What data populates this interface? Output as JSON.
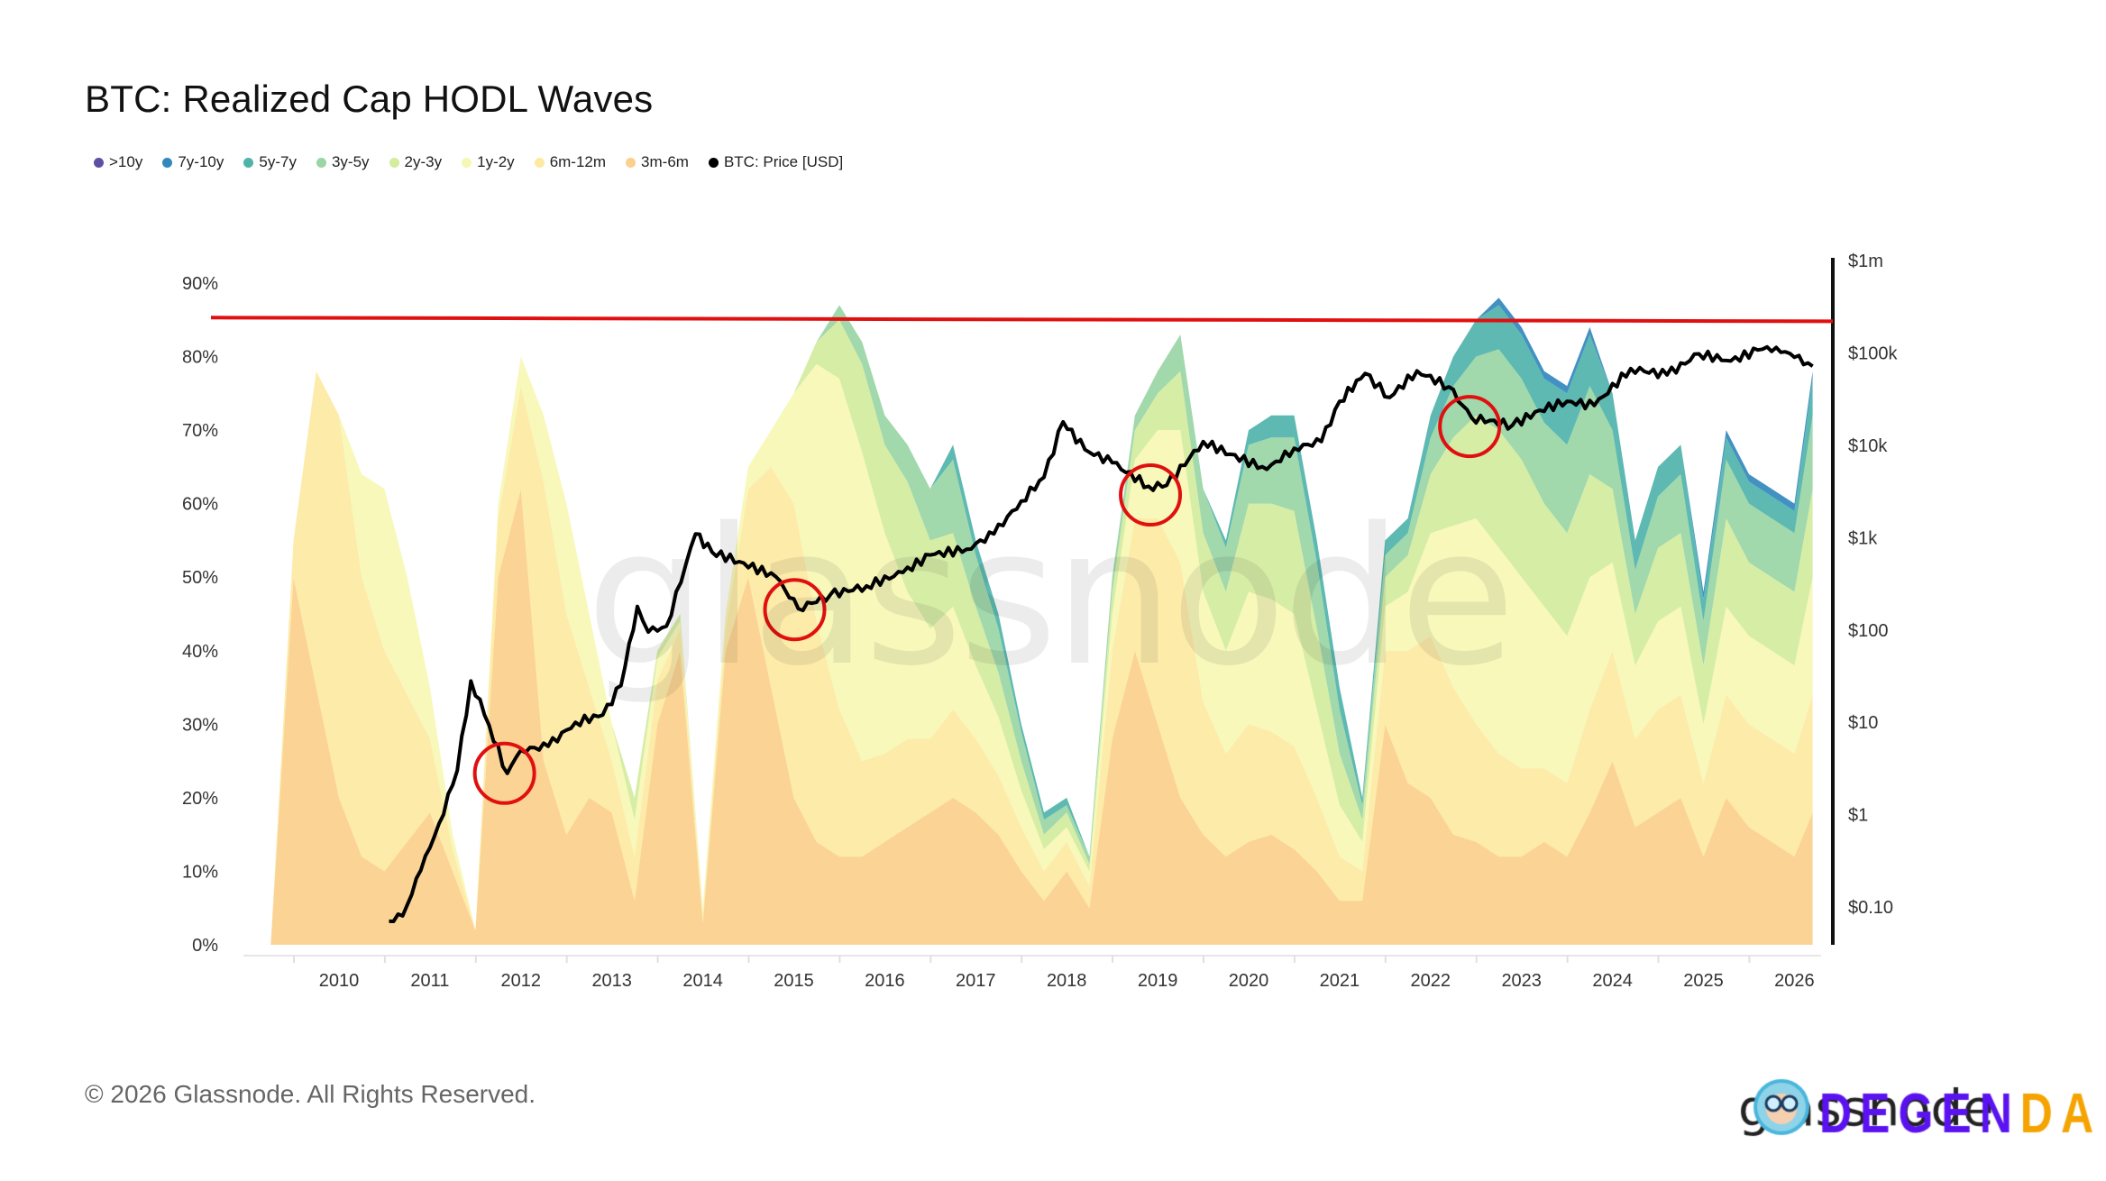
{
  "title": "BTC: Realized Cap HODL Waves",
  "footer": "© 2026 Glassnode. All Rights Reserved.",
  "watermark": "glassnode",
  "logo": {
    "brand": "glassnode",
    "overlay_part1": "DEGEN",
    "overlay_part2": "DAO!",
    "overlay_colors": [
      "#5a12f0",
      "#f5a300"
    ]
  },
  "legend": [
    {
      "label": ">10y",
      "color": "#5e4fa2"
    },
    {
      "label": "7y-10y",
      "color": "#3288bd"
    },
    {
      "label": "5y-7y",
      "color": "#4fb3aa"
    },
    {
      "label": "3y-5y",
      "color": "#99d5a5"
    },
    {
      "label": "2y-3y",
      "color": "#d3ec9e"
    },
    {
      "label": "1y-2y",
      "color": "#f6f7b4"
    },
    {
      "label": "6m-12m",
      "color": "#fde9a2"
    },
    {
      "label": "3m-6m",
      "color": "#fbd08c"
    },
    {
      "label": "BTC: Price [USD]",
      "color": "#000000"
    }
  ],
  "chart_data": {
    "type": "area",
    "stacked": true,
    "title": "BTC: Realized Cap HODL Waves",
    "xlabel": "",
    "ylabel": "",
    "x_ticks": [
      "2010",
      "2011",
      "2012",
      "2013",
      "2014",
      "2015",
      "2016",
      "2017",
      "2018",
      "2019",
      "2020",
      "2021",
      "2022",
      "2023",
      "2024",
      "2025",
      "2026"
    ],
    "y_ticks": [
      "0%",
      "10%",
      "20%",
      "30%",
      "40%",
      "50%",
      "60%",
      "70%",
      "80%",
      "90%"
    ],
    "ylim": [
      0,
      90
    ],
    "y2_scale": "log",
    "y2_ticks": [
      "$0.10",
      "$1",
      "$10",
      "$100",
      "$1k",
      "$10k",
      "$100k",
      "$1m"
    ],
    "y2lim": [
      0.1,
      1000000
    ],
    "grid": false,
    "legend_position": "top-left",
    "x": [
      2009.25,
      2009.5,
      2009.75,
      2010.0,
      2010.25,
      2010.5,
      2010.75,
      2011.0,
      2011.25,
      2011.5,
      2011.75,
      2012.0,
      2012.25,
      2012.5,
      2012.75,
      2013.0,
      2013.25,
      2013.5,
      2013.75,
      2014.0,
      2014.25,
      2014.5,
      2014.75,
      2015.0,
      2015.25,
      2015.5,
      2015.75,
      2016.0,
      2016.25,
      2016.5,
      2016.75,
      2017.0,
      2017.25,
      2017.5,
      2017.75,
      2018.0,
      2018.25,
      2018.5,
      2018.75,
      2019.0,
      2019.25,
      2019.5,
      2019.75,
      2020.0,
      2020.25,
      2020.5,
      2020.75,
      2021.0,
      2021.25,
      2021.5,
      2021.75,
      2022.0,
      2022.25,
      2022.5,
      2022.75,
      2023.0,
      2023.25,
      2023.5,
      2023.75,
      2024.0,
      2024.25,
      2024.5,
      2024.75,
      2025.0,
      2025.25,
      2025.5,
      2025.75,
      2026.0,
      2026.2
    ],
    "series": [
      {
        "name": "3m-6m",
        "color": "#fbd08c",
        "values": [
          0,
          50,
          35,
          20,
          12,
          10,
          14,
          18,
          10,
          2,
          50,
          62,
          25,
          15,
          20,
          18,
          6,
          30,
          40,
          3,
          40,
          50,
          35,
          20,
          14,
          12,
          12,
          14,
          16,
          18,
          20,
          18,
          15,
          10,
          6,
          10,
          5,
          28,
          40,
          30,
          20,
          15,
          12,
          14,
          15,
          13,
          10,
          6,
          6,
          30,
          22,
          20,
          15,
          14,
          12,
          12,
          14,
          12,
          18,
          25,
          16,
          18,
          20,
          12,
          20,
          16,
          14,
          12,
          18
        ]
      },
      {
        "name": "6m-12m",
        "color": "#fde9a2",
        "values": [
          0,
          5,
          43,
          52,
          38,
          30,
          20,
          10,
          3,
          0,
          8,
          14,
          38,
          30,
          15,
          7,
          6,
          6,
          3,
          1,
          3,
          12,
          30,
          40,
          30,
          20,
          13,
          12,
          12,
          10,
          12,
          10,
          8,
          6,
          4,
          4,
          3,
          12,
          18,
          28,
          32,
          18,
          14,
          16,
          14,
          14,
          10,
          6,
          4,
          10,
          18,
          22,
          20,
          16,
          14,
          12,
          10,
          10,
          14,
          15,
          12,
          14,
          14,
          10,
          14,
          14,
          14,
          14,
          16
        ]
      },
      {
        "name": "1y-2y",
        "color": "#f6f7b4",
        "values": [
          0,
          0,
          0,
          0,
          14,
          22,
          16,
          7,
          2,
          0,
          2,
          4,
          9,
          15,
          10,
          5,
          5,
          3,
          1,
          1,
          2,
          3,
          5,
          15,
          35,
          45,
          42,
          30,
          20,
          15,
          14,
          10,
          8,
          5,
          3,
          2,
          2,
          5,
          8,
          12,
          18,
          15,
          14,
          18,
          18,
          18,
          12,
          7,
          4,
          6,
          8,
          14,
          22,
          28,
          28,
          26,
          22,
          20,
          18,
          12,
          10,
          12,
          12,
          8,
          12,
          12,
          12,
          12,
          16
        ]
      },
      {
        "name": "2y-3y",
        "color": "#d3ec9e",
        "values": [
          0,
          0,
          0,
          0,
          0,
          0,
          0,
          0,
          0,
          0,
          0,
          0,
          0,
          0,
          0,
          0,
          3,
          1,
          1,
          0,
          0,
          0,
          0,
          0,
          3,
          8,
          12,
          12,
          15,
          12,
          10,
          8,
          6,
          4,
          2,
          2,
          1,
          3,
          4,
          5,
          8,
          8,
          8,
          12,
          13,
          14,
          11,
          7,
          3,
          4,
          5,
          8,
          12,
          14,
          16,
          16,
          14,
          14,
          14,
          10,
          7,
          10,
          10,
          8,
          12,
          10,
          10,
          10,
          12
        ]
      },
      {
        "name": "3y-5y",
        "color": "#99d5a5",
        "values": [
          0,
          0,
          0,
          0,
          0,
          0,
          0,
          0,
          0,
          0,
          0,
          0,
          0,
          0,
          0,
          0,
          0,
          0,
          0,
          0,
          0,
          0,
          0,
          0,
          0,
          2,
          3,
          4,
          5,
          7,
          10,
          7,
          6,
          4,
          2,
          1,
          1,
          2,
          2,
          3,
          5,
          6,
          6,
          8,
          9,
          10,
          9,
          6,
          2,
          3,
          3,
          5,
          7,
          8,
          11,
          11,
          11,
          12,
          12,
          8,
          6,
          7,
          8,
          6,
          8,
          8,
          8,
          8,
          10
        ]
      },
      {
        "name": "5y-7y",
        "color": "#4fb3aa",
        "values": [
          0,
          0,
          0,
          0,
          0,
          0,
          0,
          0,
          0,
          0,
          0,
          0,
          0,
          0,
          0,
          0,
          0,
          0,
          0,
          0,
          0,
          0,
          0,
          0,
          0,
          0,
          0,
          0,
          0,
          0,
          2,
          2,
          2,
          1,
          1,
          1,
          0,
          0,
          0,
          0,
          0,
          0,
          1,
          2,
          3,
          3,
          3,
          3,
          1,
          2,
          2,
          3,
          4,
          5,
          6,
          6,
          6,
          7,
          7,
          5,
          4,
          4,
          4,
          3,
          3,
          3,
          3,
          3,
          5
        ]
      },
      {
        "name": "7y-10y",
        "color": "#3288bd",
        "values": [
          0,
          0,
          0,
          0,
          0,
          0,
          0,
          0,
          0,
          0,
          0,
          0,
          0,
          0,
          0,
          0,
          0,
          0,
          0,
          0,
          0,
          0,
          0,
          0,
          0,
          0,
          0,
          0,
          0,
          0,
          0,
          0,
          0,
          0,
          0,
          0,
          0,
          0,
          0,
          0,
          0,
          0,
          0,
          0,
          0,
          0,
          0,
          0,
          0,
          0,
          0,
          0,
          0,
          0,
          1,
          1,
          1,
          1,
          1,
          0,
          0,
          0,
          0,
          1,
          1,
          1,
          1,
          1,
          1
        ]
      },
      {
        "name": ">10y",
        "color": "#5e4fa2",
        "values": [
          0,
          0,
          0,
          0,
          0,
          0,
          0,
          0,
          0,
          0,
          0,
          0,
          0,
          0,
          0,
          0,
          0,
          0,
          0,
          0,
          0,
          0,
          0,
          0,
          0,
          0,
          0,
          0,
          0,
          0,
          0,
          0,
          0,
          0,
          0,
          0,
          0,
          0,
          0,
          0,
          0,
          0,
          0,
          0,
          0,
          0,
          0,
          0,
          0,
          0,
          0,
          0,
          0,
          0,
          0,
          0,
          0,
          0,
          0,
          0,
          0,
          0,
          0,
          0,
          0,
          0,
          0,
          0,
          0
        ]
      }
    ],
    "price_series": {
      "name": "BTC: Price [USD]",
      "axis": "right",
      "color": "#000000",
      "x": [
        2010.55,
        2010.7,
        2010.9,
        2011.1,
        2011.3,
        2011.45,
        2011.6,
        2011.85,
        2012.0,
        2012.3,
        2012.6,
        2012.9,
        2013.1,
        2013.28,
        2013.4,
        2013.6,
        2013.92,
        2014.1,
        2014.4,
        2014.8,
        2015.05,
        2015.4,
        2015.8,
        2016.2,
        2016.5,
        2016.9,
        2017.2,
        2017.5,
        2017.75,
        2017.96,
        2018.2,
        2018.5,
        2018.9,
        2019.1,
        2019.5,
        2019.8,
        2020.2,
        2020.5,
        2020.8,
        2021.0,
        2021.28,
        2021.55,
        2021.85,
        2022.2,
        2022.45,
        2022.9,
        2023.2,
        2023.5,
        2023.8,
        2024.2,
        2024.6,
        2024.95,
        2025.3,
        2025.6,
        2025.8,
        2026.0,
        2026.2
      ],
      "values": [
        0.07,
        0.08,
        0.25,
        0.8,
        3,
        28,
        12,
        2.8,
        5,
        5.5,
        10,
        12,
        25,
        180,
        95,
        110,
        1100,
        700,
        550,
        380,
        170,
        240,
        300,
        420,
        650,
        750,
        1100,
        2500,
        4500,
        18000,
        9000,
        6500,
        3600,
        3700,
        11000,
        8000,
        5500,
        9300,
        11000,
        30000,
        60000,
        33000,
        64000,
        43000,
        20000,
        16500,
        24000,
        30000,
        27000,
        68000,
        58000,
        98000,
        82000,
        108000,
        115000,
        90000,
        72000
      ]
    },
    "reference_line": {
      "axis": "left",
      "y_start": 85.3,
      "y_end": 84.8,
      "color": "#e01010"
    },
    "annotations": [
      {
        "type": "circle",
        "x": 2011.82,
        "price": 2.8,
        "color": "#e01010"
      },
      {
        "type": "circle",
        "x": 2015.01,
        "price": 166,
        "color": "#e01010"
      },
      {
        "type": "circle",
        "x": 2018.92,
        "price": 2900,
        "color": "#e01010"
      },
      {
        "type": "circle",
        "x": 2022.43,
        "price": 16000,
        "color": "#e01010"
      }
    ]
  }
}
